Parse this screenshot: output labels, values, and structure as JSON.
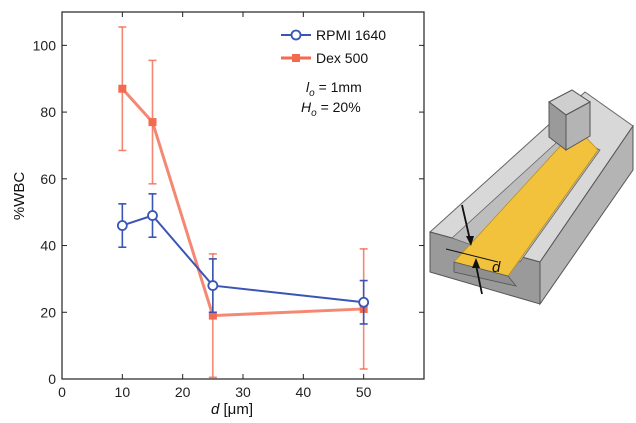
{
  "chart_data": {
    "type": "line",
    "xlabel_var": "d",
    "xlabel_unit": " [μm]",
    "ylabel": "%WBC",
    "xlim": [
      0,
      60
    ],
    "ylim": [
      0,
      110
    ],
    "xticks": [
      0,
      10,
      20,
      30,
      40,
      50
    ],
    "yticks": [
      0,
      20,
      40,
      60,
      80,
      100
    ],
    "legend_position": "top-right",
    "series": [
      {
        "name": "RPMI 1640",
        "color": "#3a55b4",
        "marker": "circle",
        "x": [
          10,
          15,
          25,
          50
        ],
        "y": [
          46,
          49,
          28,
          23
        ],
        "yerr": [
          6.5,
          6.5,
          8,
          6.5
        ]
      },
      {
        "name": "Dex 500",
        "color": "#f26a4f",
        "marker": "square",
        "x": [
          10,
          15,
          25,
          50
        ],
        "y": [
          87,
          77,
          19,
          21
        ],
        "yerr": [
          18.5,
          18.5,
          18.5,
          18
        ]
      }
    ],
    "annotations": {
      "l_symbol": "l",
      "l_sub": "o",
      "l_value": " = 1mm",
      "h_symbol": "H",
      "h_sub": "o",
      "h_value": " = 20%"
    },
    "device_label": "d"
  }
}
